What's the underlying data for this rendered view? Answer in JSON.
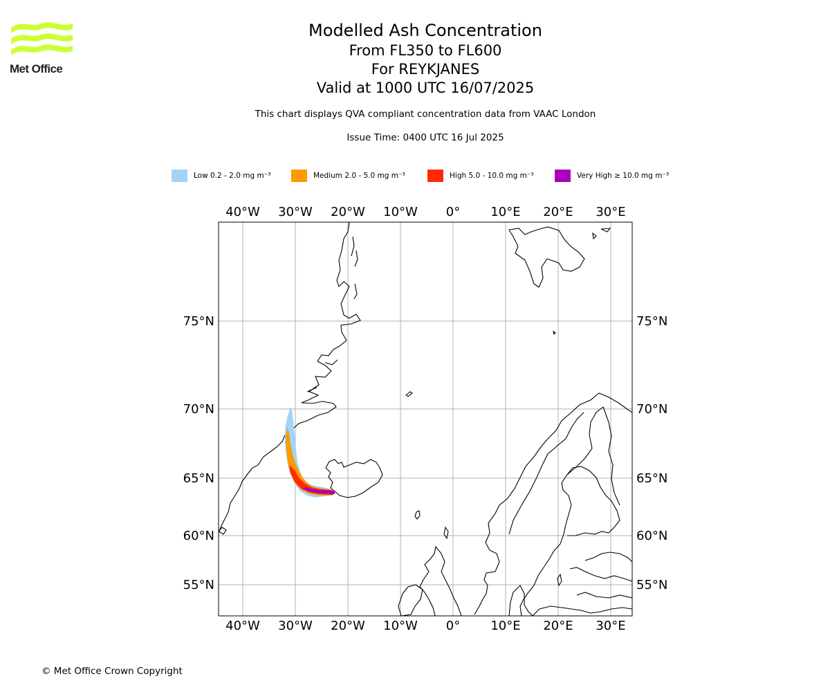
{
  "logo": {
    "text": "Met Office",
    "logo_color": "#ccff33"
  },
  "header": {
    "title": "Modelled Ash Concentration",
    "levels": "From FL350 to FL600",
    "location": "For REYKJANES",
    "valid": "Valid at 1000 UTC 16/07/2025",
    "compliance": "This chart displays QVA compliant concentration data from VAAC London",
    "issue_time": "Issue Time: 0400 UTC 16 Jul 2025"
  },
  "legend": [
    {
      "label": "Low 0.2 - 2.0 mg m⁻³",
      "color": "#a0d4fa"
    },
    {
      "label": "Medium 2.0 - 5.0 mg m⁻³",
      "color": "#ff9900"
    },
    {
      "label": "High 5.0 - 10.0 mg m⁻³",
      "color": "#ff2a00"
    },
    {
      "label": "Very High ≥ 10.0 mg m⁻³",
      "color": "#aa00bb"
    }
  ],
  "map": {
    "lon_labels": [
      "40°W",
      "30°W",
      "20°W",
      "10°W",
      "0°",
      "10°E",
      "20°E",
      "30°E"
    ],
    "lat_labels": [
      "75°N",
      "70°N",
      "65°N",
      "60°N",
      "55°N"
    ],
    "grid_color": "#b0b0b0"
  },
  "footer": {
    "copyright": "© Met Office Crown Copyright"
  }
}
